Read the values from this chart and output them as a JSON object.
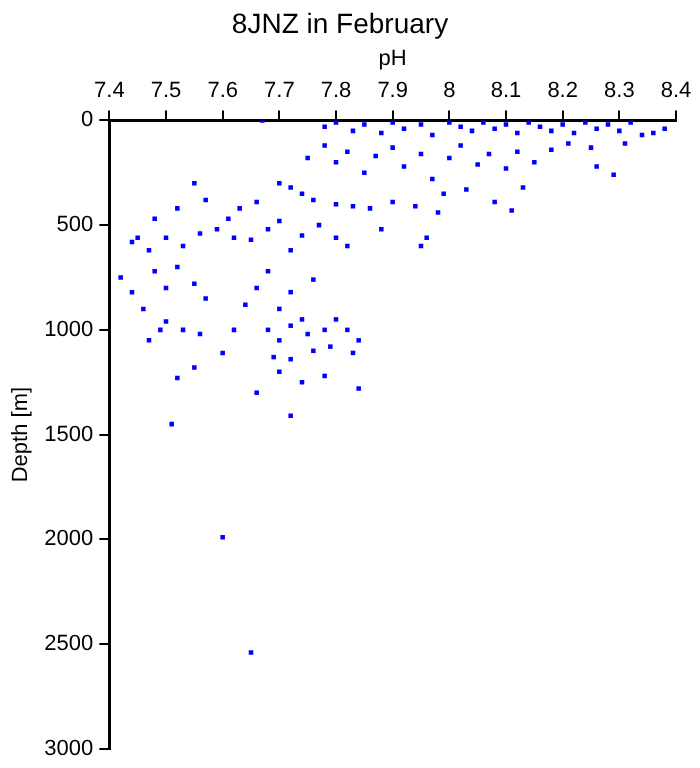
{
  "chart_data": {
    "type": "scatter",
    "title": "8JNZ in February",
    "xlabel": "pH",
    "ylabel": "Depth [m]",
    "xlim": [
      7.4,
      8.4
    ],
    "xticks": [
      7.4,
      7.5,
      7.6,
      7.7,
      7.8,
      7.9,
      8,
      8.1,
      8.2,
      8.3,
      8.4
    ],
    "ylim": [
      3000,
      0
    ],
    "yticks": [
      0,
      500,
      1000,
      1500,
      2000,
      2500,
      3000
    ],
    "grid": false,
    "legend": false,
    "marker": "square",
    "series": [
      {
        "color": "#0000ff",
        "x": [
          7.67,
          7.78,
          7.8,
          7.83,
          7.85,
          7.88,
          7.9,
          7.92,
          7.95,
          7.97,
          8.0,
          8.02,
          8.04,
          8.06,
          8.08,
          8.1,
          8.12,
          8.14,
          8.16,
          8.18,
          8.2,
          8.22,
          8.24,
          8.26,
          8.28,
          8.3,
          8.32,
          8.34,
          8.38,
          8.36,
          8.31,
          8.25,
          7.75,
          7.78,
          7.8,
          7.82,
          7.85,
          7.87,
          7.9,
          7.92,
          7.95,
          7.97,
          8.0,
          8.02,
          8.05,
          8.07,
          8.1,
          8.12,
          8.15,
          8.18,
          8.21,
          8.26,
          8.29,
          8.13,
          7.99,
          8.03,
          7.7,
          7.72,
          7.74,
          7.76,
          7.8,
          7.83,
          7.86,
          7.9,
          7.94,
          7.98,
          8.08,
          8.11,
          7.88,
          7.96,
          7.95,
          7.66,
          7.63,
          7.61,
          7.57,
          7.55,
          7.52,
          7.48,
          7.45,
          7.44,
          7.47,
          7.5,
          7.53,
          7.56,
          7.59,
          7.62,
          7.65,
          7.68,
          7.7,
          7.72,
          7.74,
          7.77,
          7.8,
          7.82,
          7.42,
          7.44,
          7.48,
          7.5,
          7.52,
          7.55,
          7.57,
          7.46,
          7.5,
          7.53,
          7.49,
          7.56,
          7.47,
          7.6,
          7.62,
          7.64,
          7.66,
          7.68,
          7.7,
          7.72,
          7.74,
          7.76,
          7.68,
          7.7,
          7.72,
          7.75,
          7.78,
          7.8,
          7.82,
          7.84,
          7.69,
          7.72,
          7.76,
          7.79,
          7.83,
          7.7,
          7.74,
          7.78,
          7.84,
          7.52,
          7.55,
          7.51,
          7.72,
          7.66,
          7.6,
          7.65
        ],
        "values": [
          0,
          30,
          10,
          50,
          20,
          60,
          10,
          40,
          20,
          70,
          10,
          30,
          50,
          10,
          40,
          20,
          60,
          10,
          30,
          50,
          20,
          60,
          10,
          40,
          20,
          50,
          10,
          70,
          40,
          60,
          110,
          130,
          180,
          120,
          200,
          150,
          250,
          170,
          130,
          220,
          160,
          280,
          180,
          120,
          210,
          160,
          230,
          150,
          200,
          140,
          110,
          220,
          260,
          320,
          350,
          330,
          300,
          320,
          350,
          380,
          400,
          410,
          420,
          390,
          410,
          440,
          390,
          430,
          520,
          560,
          600,
          390,
          420,
          470,
          380,
          300,
          420,
          470,
          560,
          580,
          620,
          560,
          600,
          540,
          520,
          560,
          570,
          520,
          480,
          620,
          550,
          500,
          560,
          600,
          750,
          820,
          720,
          800,
          700,
          780,
          850,
          900,
          960,
          1000,
          1000,
          1020,
          1050,
          1110,
          1000,
          880,
          800,
          720,
          900,
          820,
          950,
          760,
          1000,
          1050,
          980,
          1020,
          1000,
          950,
          1000,
          1050,
          1130,
          1140,
          1100,
          1080,
          1110,
          1200,
          1250,
          1220,
          1280,
          1230,
          1180,
          1450,
          1410,
          1300,
          1990,
          2540
        ]
      }
    ]
  }
}
